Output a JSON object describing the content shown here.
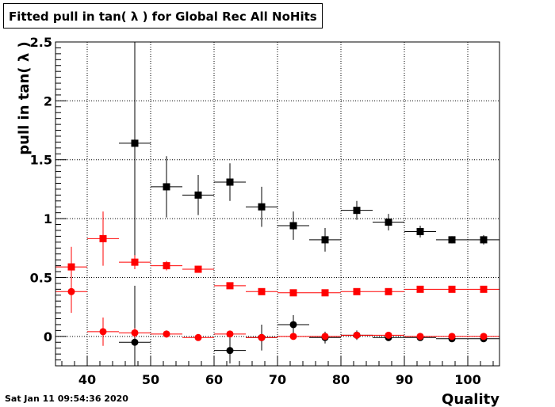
{
  "chart_data": {
    "type": "scatter",
    "title": "Fitted pull in tan( λ ) for Global Rec All NoHits",
    "xlabel": "Quality",
    "ylabel": "pull in tan( λ )",
    "xlim": [
      35,
      105
    ],
    "ylim": [
      -0.25,
      2.5
    ],
    "x_ticks": [
      40,
      50,
      60,
      70,
      80,
      90,
      100
    ],
    "y_ticks": [
      0,
      0.5,
      1,
      1.5,
      2,
      2.5
    ],
    "y_tick_labels": [
      "0",
      "0.5",
      "1",
      "1.5",
      "2",
      "2.5"
    ],
    "grid": true,
    "x_error_halfwidth": 2.5,
    "series": [
      {
        "color": "#000000",
        "marker": "square",
        "x": [
          47.5,
          52.5,
          57.5,
          62.5,
          67.5,
          72.5,
          77.5,
          82.5,
          87.5,
          92.5,
          97.5,
          102.5
        ],
        "y": [
          1.64,
          1.27,
          1.2,
          1.31,
          1.1,
          0.94,
          0.82,
          1.07,
          0.97,
          0.89,
          0.82,
          0.82
        ],
        "yerr": [
          1.0,
          0.26,
          0.17,
          0.16,
          0.17,
          0.12,
          0.1,
          0.08,
          0.07,
          0.05,
          0.03,
          0.04
        ]
      },
      {
        "color": "#000000",
        "marker": "circle",
        "x": [
          47.5,
          62.5,
          67.5,
          72.5,
          77.5,
          82.5,
          87.5,
          92.5,
          97.5,
          102.5
        ],
        "y": [
          -0.05,
          -0.12,
          -0.01,
          0.1,
          -0.01,
          0.01,
          -0.01,
          -0.01,
          -0.02,
          -0.02
        ],
        "yerr": [
          0.48,
          0.11,
          0.11,
          0.08,
          0.05,
          0.04,
          0.03,
          0.02,
          0.02,
          0.02
        ]
      },
      {
        "color": "#ff0000",
        "marker": "square",
        "x": [
          37.5,
          42.5,
          47.5,
          52.5,
          57.5,
          62.5,
          67.5,
          72.5,
          77.5,
          82.5,
          87.5,
          92.5,
          97.5,
          102.5
        ],
        "y": [
          0.59,
          0.83,
          0.63,
          0.6,
          0.57,
          0.43,
          0.38,
          0.37,
          0.37,
          0.38,
          0.38,
          0.4,
          0.4,
          0.4
        ],
        "yerr": [
          0.17,
          0.23,
          0.06,
          0.04,
          0.03,
          0.02,
          0.02,
          0.02,
          0.02,
          0.02,
          0.01,
          0.02,
          0.01,
          0.01
        ]
      },
      {
        "color": "#ff0000",
        "marker": "circle",
        "x": [
          37.5,
          42.5,
          47.5,
          52.5,
          57.5,
          62.5,
          67.5,
          72.5,
          77.5,
          82.5,
          87.5,
          92.5,
          97.5,
          102.5
        ],
        "y": [
          0.38,
          0.04,
          0.03,
          0.02,
          -0.01,
          0.02,
          -0.01,
          0.0,
          0.0,
          0.01,
          0.01,
          0.0,
          0.0,
          0.0
        ],
        "yerr": [
          0.18,
          0.12,
          0.04,
          0.03,
          0.02,
          0.02,
          0.01,
          0.01,
          0.01,
          0.01,
          0.01,
          0.01,
          0.01,
          0.01
        ]
      }
    ]
  },
  "footer": {
    "timestamp": "Sat Jan 11 09:54:36 2020"
  }
}
